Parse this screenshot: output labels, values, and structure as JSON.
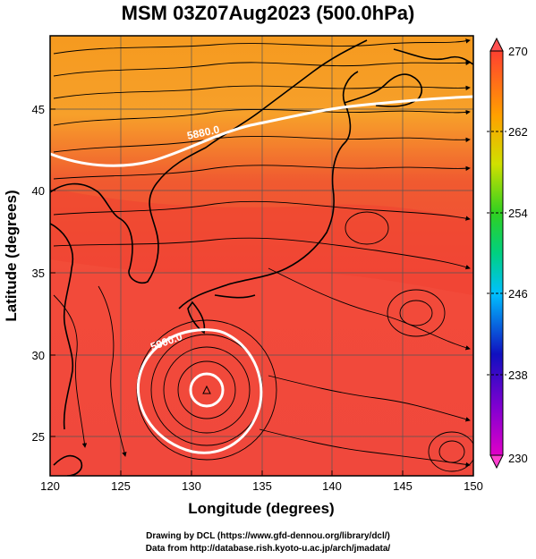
{
  "title": "MSM 03Z07Aug2023 (500.0hPa)",
  "x_axis_title": "Longitude (degrees)",
  "y_axis_title": "Latitude  (degrees)",
  "x_ticks": [
    "120",
    "125",
    "130",
    "135",
    "140",
    "145",
    "150"
  ],
  "y_ticks": [
    "25",
    "30",
    "35",
    "40",
    "45"
  ],
  "contour_labels": [
    "5880.0",
    "5900.0"
  ],
  "colorbar": {
    "ticks": [
      "230",
      "238",
      "246",
      "254",
      "262",
      "270"
    ],
    "colors": [
      "#d000d0",
      "#1010d0",
      "#00c8ff",
      "#10d040",
      "#c8e000",
      "#ffa000",
      "#ff5030"
    ]
  },
  "credits": [
    "Drawing by DCL (https://www.gfd-dennou.org/library/dcl/)",
    "Data from http://database.rish.kyoto-u.ac.jp/arch/jmadata/"
  ]
}
